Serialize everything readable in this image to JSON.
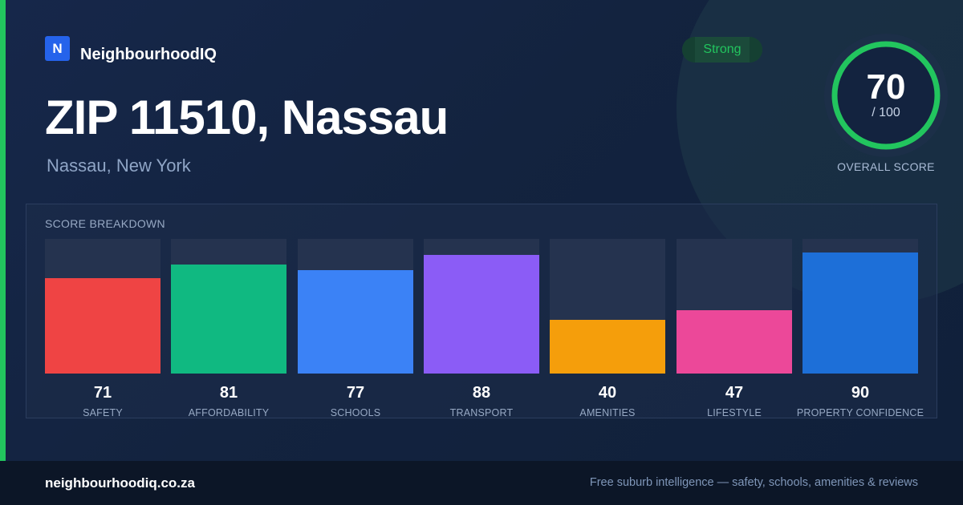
{
  "brand": {
    "logo_letter": "N",
    "name": "NeighbourhoodIQ"
  },
  "header": {
    "title": "ZIP 11510, Nassau",
    "subtitle": "Nassau, New York"
  },
  "badge": {
    "label": "Strong",
    "color": "#22c55e"
  },
  "overall": {
    "score": "70",
    "max": "/ 100",
    "label": "OVERALL SCORE",
    "value": 70,
    "ring_color": "#22c55e"
  },
  "breakdown": {
    "title": "SCORE BREAKDOWN"
  },
  "chart_data": {
    "type": "bar",
    "title": "SCORE BREAKDOWN",
    "ylim": [
      0,
      100
    ],
    "categories": [
      "SAFETY",
      "AFFORDABILITY",
      "SCHOOLS",
      "TRANSPORT",
      "AMENITIES",
      "LIFESTYLE",
      "PROPERTY CONFIDENCE"
    ],
    "values": [
      71,
      81,
      77,
      88,
      40,
      47,
      90
    ],
    "colors": [
      "#ef4444",
      "#10b981",
      "#3b82f6",
      "#8b5cf6",
      "#f59e0b",
      "#ec4899",
      "#1d6fd8"
    ],
    "grid": false
  },
  "footer": {
    "url": "neighbourhoodiq.co.za",
    "tagline": "Free suburb intelligence — safety, schools, amenities & reviews"
  }
}
